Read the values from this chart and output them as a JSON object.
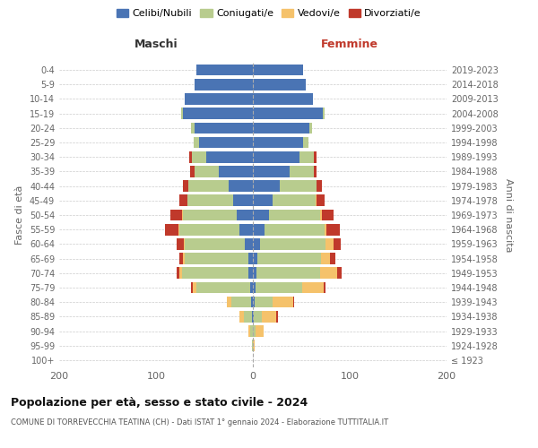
{
  "age_groups": [
    "100+",
    "95-99",
    "90-94",
    "85-89",
    "80-84",
    "75-79",
    "70-74",
    "65-69",
    "60-64",
    "55-59",
    "50-54",
    "45-49",
    "40-44",
    "35-39",
    "30-34",
    "25-29",
    "20-24",
    "15-19",
    "10-14",
    "5-9",
    "0-4"
  ],
  "birth_years": [
    "≤ 1923",
    "1924-1928",
    "1929-1933",
    "1934-1938",
    "1939-1943",
    "1944-1948",
    "1949-1953",
    "1954-1958",
    "1959-1963",
    "1964-1968",
    "1969-1973",
    "1974-1978",
    "1979-1983",
    "1984-1988",
    "1989-1993",
    "1994-1998",
    "1999-2003",
    "2004-2008",
    "2009-2013",
    "2014-2018",
    "2019-2023"
  ],
  "males": {
    "celibi": [
      0,
      0,
      0,
      1,
      2,
      3,
      5,
      5,
      8,
      14,
      17,
      20,
      25,
      35,
      48,
      56,
      60,
      72,
      70,
      60,
      58
    ],
    "coniugati": [
      0,
      1,
      3,
      8,
      20,
      55,
      68,
      65,
      62,
      62,
      55,
      48,
      42,
      25,
      15,
      5,
      4,
      2,
      0,
      0,
      0
    ],
    "vedovi": [
      0,
      0,
      2,
      5,
      5,
      4,
      3,
      2,
      1,
      1,
      1,
      0,
      0,
      0,
      0,
      0,
      0,
      0,
      0,
      0,
      0
    ],
    "divorziati": [
      0,
      0,
      0,
      0,
      0,
      2,
      3,
      4,
      8,
      14,
      12,
      8,
      5,
      5,
      3,
      0,
      0,
      0,
      0,
      0,
      0
    ]
  },
  "females": {
    "nubili": [
      0,
      0,
      0,
      1,
      2,
      3,
      4,
      5,
      7,
      12,
      17,
      20,
      28,
      38,
      48,
      52,
      58,
      72,
      62,
      55,
      52
    ],
    "coniugate": [
      0,
      0,
      3,
      8,
      18,
      48,
      65,
      65,
      68,
      62,
      52,
      45,
      38,
      25,
      15,
      5,
      3,
      2,
      0,
      0,
      0
    ],
    "vedove": [
      0,
      2,
      8,
      15,
      22,
      22,
      18,
      10,
      8,
      2,
      2,
      1,
      0,
      0,
      0,
      0,
      0,
      0,
      0,
      0,
      0
    ],
    "divorziate": [
      0,
      0,
      0,
      2,
      1,
      2,
      5,
      5,
      8,
      14,
      12,
      8,
      5,
      3,
      3,
      0,
      0,
      0,
      0,
      0,
      0
    ]
  },
  "colors": {
    "celibi": "#4a74b4",
    "coniugati": "#b8cc8e",
    "vedovi": "#f5c26b",
    "divorziati": "#c0392b"
  },
  "xlim": 200,
  "title": "Popolazione per età, sesso e stato civile - 2024",
  "subtitle": "COMUNE DI TORREVECCHIA TEATINA (CH) - Dati ISTAT 1° gennaio 2024 - Elaborazione TUTTITALIA.IT",
  "ylabel_left": "Fasce di età",
  "ylabel_right": "Anni di nascita",
  "legend_labels": [
    "Celibi/Nubili",
    "Coniugati/e",
    "Vedovi/e",
    "Divorziati/e"
  ],
  "maschi_label": "Maschi",
  "femmine_label": "Femmine",
  "background_color": "#ffffff",
  "grid_color": "#cccccc"
}
